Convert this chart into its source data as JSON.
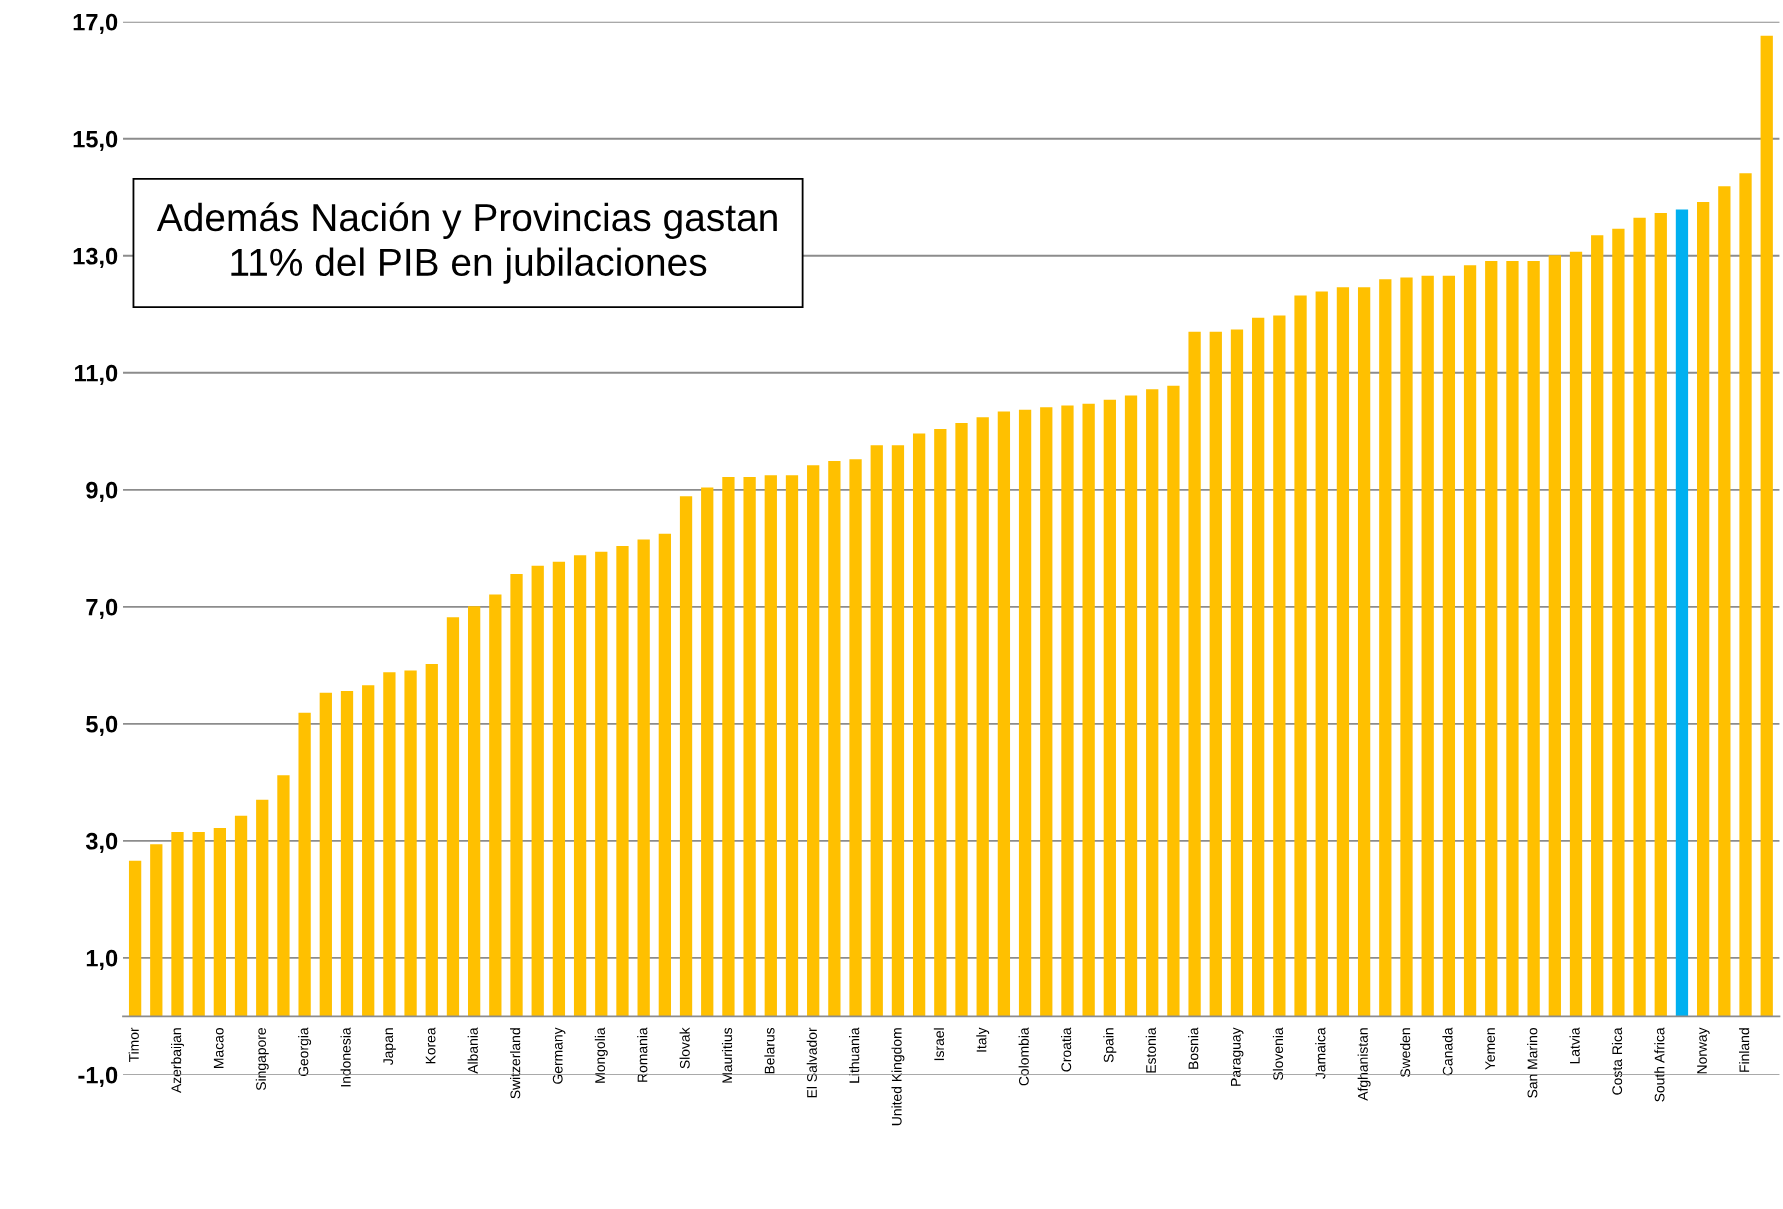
{
  "chart_data": {
    "type": "bar",
    "categories": [
      "Timor",
      null,
      "Azerbaijan",
      null,
      "Macao",
      null,
      "Singapore",
      null,
      "Georgia",
      null,
      "Indonesia",
      null,
      "Japan",
      null,
      "Korea",
      null,
      "Albania",
      null,
      "Switzerland",
      null,
      "Germany",
      null,
      "Mongolia",
      null,
      "Romania",
      null,
      "Slovak",
      null,
      "Mauritius",
      null,
      "Belarus",
      null,
      "El Salvador",
      null,
      "Lithuania",
      null,
      "United Kingdom",
      null,
      "Israel",
      null,
      "Italy",
      null,
      "Colombia",
      null,
      "Croatia",
      null,
      "Spain",
      null,
      "Estonia",
      null,
      "Bosnia",
      null,
      "Paraguay",
      null,
      "Slovenia",
      null,
      "Jamaica",
      null,
      "Afghanistan",
      null,
      "Sweden",
      null,
      "Canada",
      null,
      "Yemen",
      null,
      "San Marino",
      null,
      "Latvia",
      null,
      "Costa Rica",
      null,
      "South Africa",
      null,
      "Norway",
      null,
      "Finland",
      null
    ],
    "values": [
      2.66,
      2.94,
      3.15,
      3.15,
      3.22,
      3.43,
      3.7,
      4.12,
      5.19,
      5.53,
      5.56,
      5.66,
      5.88,
      5.91,
      6.02,
      6.82,
      7.01,
      7.21,
      7.56,
      7.7,
      7.77,
      7.88,
      7.94,
      8.04,
      8.15,
      8.25,
      8.89,
      9.04,
      9.22,
      9.22,
      9.25,
      9.25,
      9.42,
      9.49,
      9.52,
      9.76,
      9.76,
      9.96,
      10.04,
      10.14,
      10.24,
      10.34,
      10.37,
      10.41,
      10.44,
      10.47,
      10.54,
      10.61,
      10.72,
      10.78,
      11.7,
      11.7,
      11.74,
      11.94,
      11.98,
      12.32,
      12.39,
      12.46,
      12.46,
      12.6,
      12.63,
      12.66,
      12.66,
      12.84,
      12.91,
      12.91,
      12.91,
      13.01,
      13.07,
      13.35,
      13.46,
      13.65,
      13.73,
      13.79,
      13.92,
      14.19,
      14.41,
      16.76
    ],
    "colors": [
      "#ffc000",
      "#ffc000",
      "#ffc000",
      "#ffc000",
      "#ffc000",
      "#ffc000",
      "#ffc000",
      "#ffc000",
      "#ffc000",
      "#ffc000",
      "#ffc000",
      "#ffc000",
      "#ffc000",
      "#ffc000",
      "#ffc000",
      "#ffc000",
      "#ffc000",
      "#ffc000",
      "#ffc000",
      "#ffc000",
      "#ffc000",
      "#ffc000",
      "#ffc000",
      "#ffc000",
      "#ffc000",
      "#ffc000",
      "#ffc000",
      "#ffc000",
      "#ffc000",
      "#ffc000",
      "#ffc000",
      "#ffc000",
      "#ffc000",
      "#ffc000",
      "#ffc000",
      "#ffc000",
      "#ffc000",
      "#ffc000",
      "#ffc000",
      "#ffc000",
      "#ffc000",
      "#ffc000",
      "#ffc000",
      "#ffc000",
      "#ffc000",
      "#ffc000",
      "#ffc000",
      "#ffc000",
      "#ffc000",
      "#ffc000",
      "#ffc000",
      "#ffc000",
      "#ffc000",
      "#ffc000",
      "#ffc000",
      "#ffc000",
      "#ffc000",
      "#ffc000",
      "#ffc000",
      "#ffc000",
      "#ffc000",
      "#ffc000",
      "#ffc000",
      "#ffc000",
      "#ffc000",
      "#ffc000",
      "#ffc000",
      "#ffc000",
      "#ffc000",
      "#ffc000",
      "#ffc000",
      "#ffc000",
      "#ffc000",
      "#00b0f0",
      "#ffc000",
      "#ffc000",
      "#ffc000",
      "#ffc000"
    ],
    "ylim": [
      -1,
      17
    ],
    "yticks": [
      {
        "value": -1,
        "label": "-1,0"
      },
      {
        "value": 1,
        "label": "1,0"
      },
      {
        "value": 3,
        "label": "3,0"
      },
      {
        "value": 5,
        "label": "5,0"
      },
      {
        "value": 7,
        "label": "7,0"
      },
      {
        "value": 9,
        "label": "9,0"
      },
      {
        "value": 11,
        "label": "11,0"
      },
      {
        "value": 13,
        "label": "13,0"
      },
      {
        "value": 15,
        "label": "15,0"
      },
      {
        "value": 17,
        "label": "17,0"
      }
    ],
    "grid": "y",
    "annotations": [
      "Además Nación y Provincias gastan 11% del PIB en jubilaciones"
    ]
  }
}
